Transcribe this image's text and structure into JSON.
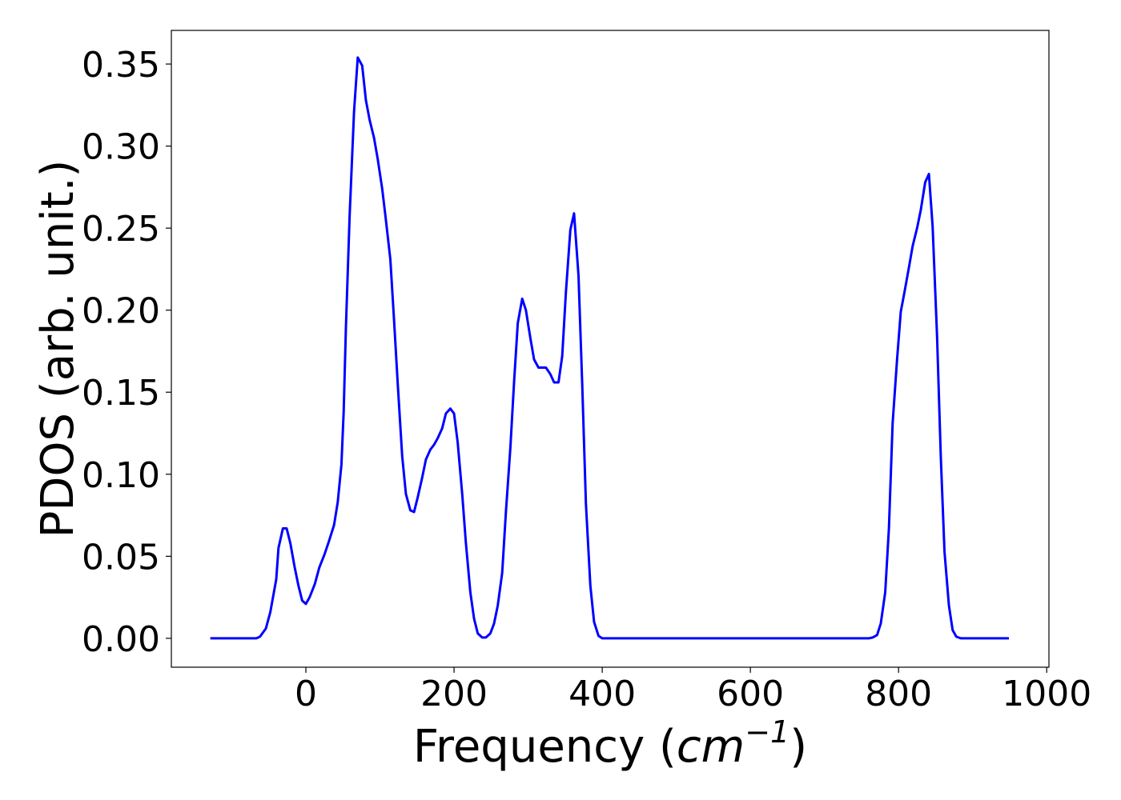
{
  "chart_data": {
    "type": "line",
    "xlabel": [
      "Frequency (",
      "cm",
      "−1",
      ")"
    ],
    "ylabel": "PDOS (arb. unit.)",
    "xlim": [
      -181.6,
      1003
    ],
    "ylim": [
      -0.0176,
      0.3705
    ],
    "xticks": [
      0,
      200,
      400,
      600,
      800,
      1000
    ],
    "yticks": [
      {
        "value": 0,
        "label": "0.00"
      },
      {
        "value": 0.05,
        "label": "0.05"
      },
      {
        "value": 0.1,
        "label": "0.10"
      },
      {
        "value": 0.15,
        "label": "0.15"
      },
      {
        "value": 0.2,
        "label": "0.20"
      },
      {
        "value": 0.25,
        "label": "0.25"
      },
      {
        "value": 0.3,
        "label": "0.30"
      },
      {
        "value": 0.35,
        "label": "0.35"
      }
    ],
    "x": [
      -129,
      -67,
      -62,
      -54,
      -48,
      -40,
      -37,
      -31,
      -26,
      -21,
      -15,
      -10,
      -5,
      0,
      5,
      12,
      18,
      25,
      31,
      38,
      43,
      48,
      51,
      54,
      59,
      65,
      70,
      76,
      81,
      86,
      92,
      97,
      103,
      108,
      114,
      119,
      124,
      130,
      135,
      141,
      146,
      151,
      157,
      162,
      168,
      173,
      178,
      184,
      189,
      195,
      200,
      205,
      211,
      216,
      222,
      227,
      232,
      238,
      243,
      249,
      254,
      259,
      265,
      270,
      276,
      281,
      286,
      292,
      297,
      303,
      308,
      314,
      319,
      324,
      330,
      335,
      341,
      346,
      351,
      357,
      362,
      368,
      373,
      378,
      384,
      389,
      395,
      400,
      760,
      765,
      771,
      776,
      782,
      787,
      792,
      798,
      803,
      808,
      814,
      819,
      825,
      830,
      836,
      841,
      846,
      852,
      857,
      862,
      868,
      873,
      878,
      884,
      949
    ],
    "series": [
      {
        "name": "PDOS",
        "color": "#0000ff",
        "values": [
          0,
          0,
          0.001,
          0.006,
          0.016,
          0.036,
          0.055,
          0.067,
          0.067,
          0.058,
          0.043,
          0.032,
          0.023,
          0.021,
          0.025,
          0.033,
          0.043,
          0.051,
          0.059,
          0.069,
          0.083,
          0.106,
          0.138,
          0.189,
          0.257,
          0.321,
          0.354,
          0.349,
          0.328,
          0.316,
          0.305,
          0.292,
          0.274,
          0.255,
          0.231,
          0.194,
          0.155,
          0.111,
          0.088,
          0.078,
          0.077,
          0.086,
          0.098,
          0.109,
          0.115,
          0.118,
          0.122,
          0.128,
          0.137,
          0.14,
          0.137,
          0.119,
          0.088,
          0.058,
          0.028,
          0.012,
          0.003,
          0.0005,
          0.0005,
          0.003,
          0.009,
          0.02,
          0.04,
          0.077,
          0.116,
          0.156,
          0.192,
          0.207,
          0.2,
          0.183,
          0.17,
          0.165,
          0.165,
          0.165,
          0.161,
          0.156,
          0.156,
          0.172,
          0.211,
          0.249,
          0.259,
          0.221,
          0.155,
          0.082,
          0.032,
          0.01,
          0.0015,
          0,
          0,
          0.0005,
          0.002,
          0.009,
          0.028,
          0.067,
          0.131,
          0.17,
          0.199,
          0.211,
          0.226,
          0.239,
          0.25,
          0.261,
          0.278,
          0.283,
          0.251,
          0.184,
          0.111,
          0.053,
          0.02,
          0.005,
          0.001,
          0,
          0
        ]
      }
    ]
  }
}
